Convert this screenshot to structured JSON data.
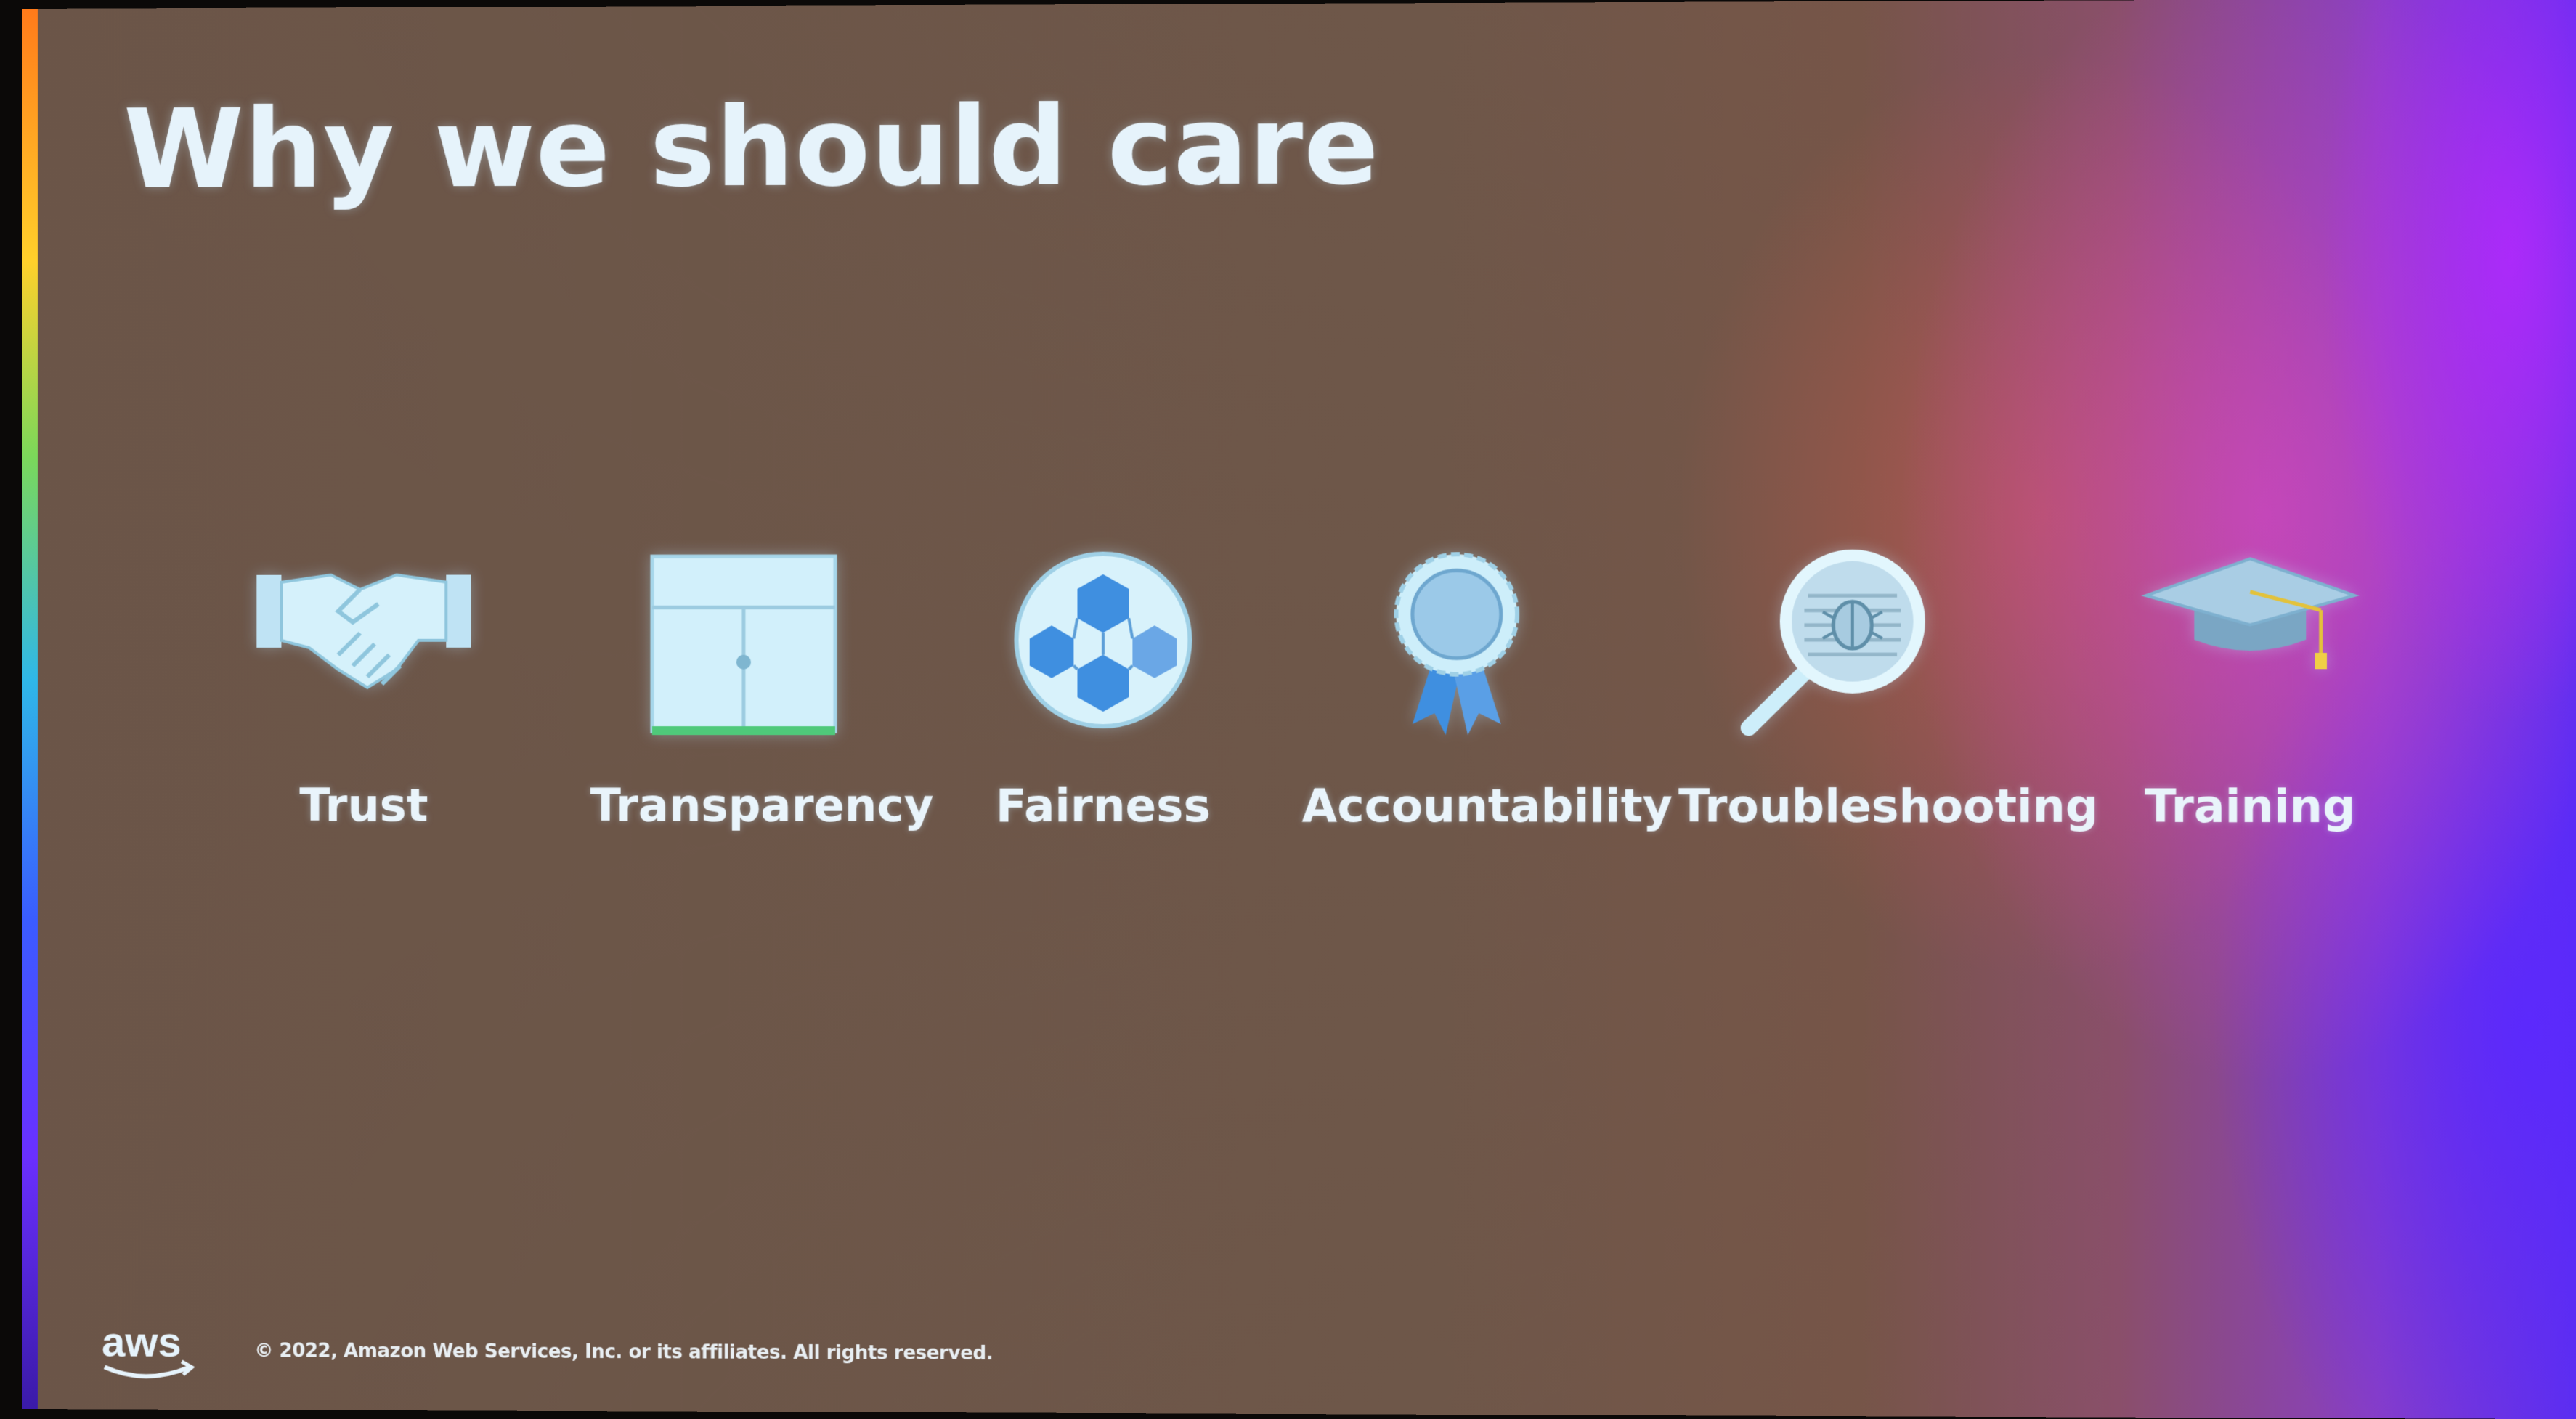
{
  "slide": {
    "title": "Why we should care",
    "items": [
      {
        "label": "Trust",
        "icon": "handshake-icon"
      },
      {
        "label": "Transparency",
        "icon": "cabinet-icon"
      },
      {
        "label": "Fairness",
        "icon": "soccer-ball-icon"
      },
      {
        "label": "Accountability",
        "icon": "award-ribbon-icon"
      },
      {
        "label": "Troubleshooting",
        "icon": "magnifier-bug-icon"
      },
      {
        "label": "Training",
        "icon": "graduation-cap-icon"
      }
    ],
    "footer": {
      "logo": "aws",
      "copyright": "© 2022, Amazon Web Services, Inc. or its affiliates. All rights reserved."
    },
    "colors": {
      "text": "#e6f3fb",
      "icon_fill": "#cfeefa",
      "icon_accent": "#3f8fe0",
      "aws_smile": "#e6f3fb"
    }
  }
}
